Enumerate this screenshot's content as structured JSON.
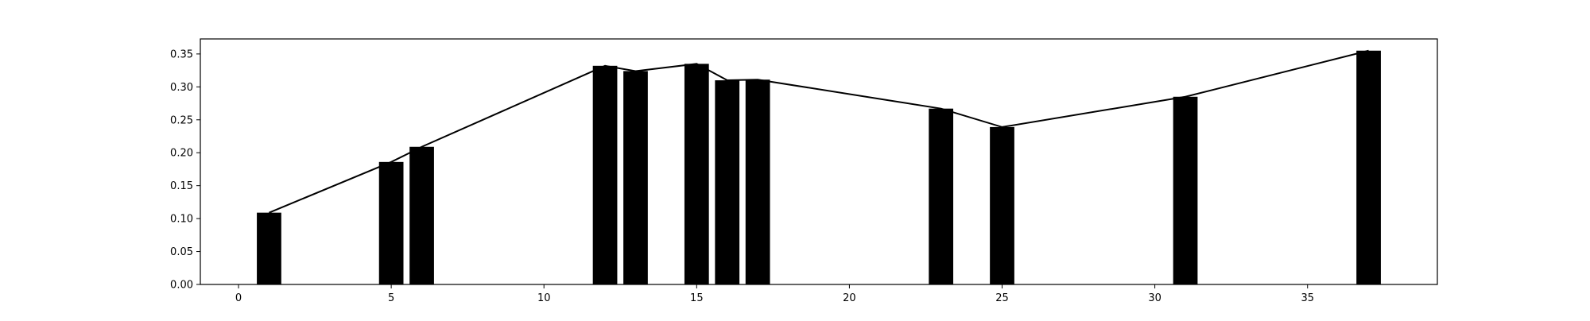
{
  "chart_data": {
    "type": "bar",
    "x": [
      1,
      5,
      6,
      12,
      13,
      15,
      16,
      17,
      23,
      25,
      31,
      37
    ],
    "values": [
      0.109,
      0.186,
      0.209,
      0.332,
      0.324,
      0.335,
      0.31,
      0.311,
      0.267,
      0.239,
      0.285,
      0.355
    ],
    "overlay_line": true,
    "title": "",
    "xlabel": "",
    "ylabel": "",
    "xlim": [
      -1.25,
      39.25
    ],
    "ylim": [
      0,
      0.3728
    ],
    "xticks": [
      0,
      5,
      10,
      15,
      20,
      25,
      30,
      35
    ],
    "yticks": [
      0.0,
      0.05,
      0.1,
      0.15,
      0.2,
      0.25,
      0.3,
      0.35
    ],
    "bar_color": "#000000",
    "line_color": "#000000",
    "grid": false
  }
}
